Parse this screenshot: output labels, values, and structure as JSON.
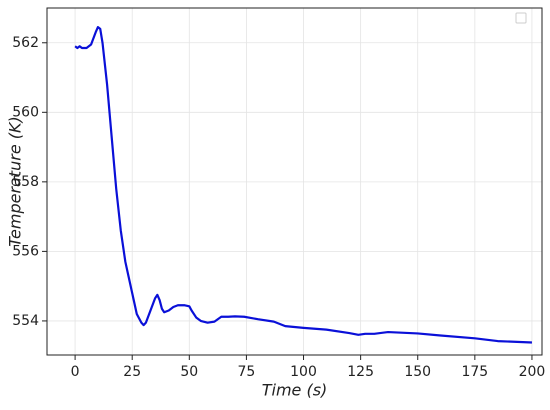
{
  "chart_data": {
    "type": "line",
    "x_label": "Time (s)",
    "y_label": "Temperature (K)",
    "x": [
      0,
      1,
      2,
      3,
      5,
      7,
      9,
      10,
      11,
      12,
      14,
      16,
      18,
      20,
      22,
      25,
      27,
      29,
      30,
      31,
      33,
      35,
      36,
      37,
      38,
      39,
      41,
      43,
      45,
      48,
      50,
      51,
      53,
      55,
      58,
      61,
      64,
      67,
      70,
      74,
      80,
      87,
      92,
      100,
      110,
      120,
      124,
      127,
      131,
      137,
      150,
      160,
      175,
      185,
      200
    ],
    "series": [
      {
        "color": "#0a10d8",
        "values": [
          561.9,
          561.85,
          561.9,
          561.85,
          561.85,
          561.95,
          562.3,
          562.45,
          562.4,
          562.0,
          560.8,
          559.3,
          557.8,
          556.6,
          555.7,
          554.8,
          554.2,
          553.95,
          553.88,
          553.95,
          554.3,
          554.65,
          554.75,
          554.6,
          554.35,
          554.25,
          554.3,
          554.4,
          554.45,
          554.45,
          554.42,
          554.3,
          554.1,
          554.0,
          553.95,
          553.98,
          554.12,
          554.12,
          554.13,
          554.12,
          554.05,
          553.98,
          553.85,
          553.8,
          553.75,
          553.65,
          553.6,
          553.63,
          553.63,
          553.68,
          553.64,
          553.58,
          553.5,
          553.42,
          553.38
        ]
      }
    ],
    "xlim": [
      -12.3,
      204.4
    ],
    "ylim": [
      553.02,
      563.0
    ],
    "xticks": [
      0,
      25,
      50,
      75,
      100,
      125,
      150,
      175,
      200
    ],
    "yticks": [
      554,
      556,
      558,
      560,
      562
    ],
    "grid": true
  }
}
